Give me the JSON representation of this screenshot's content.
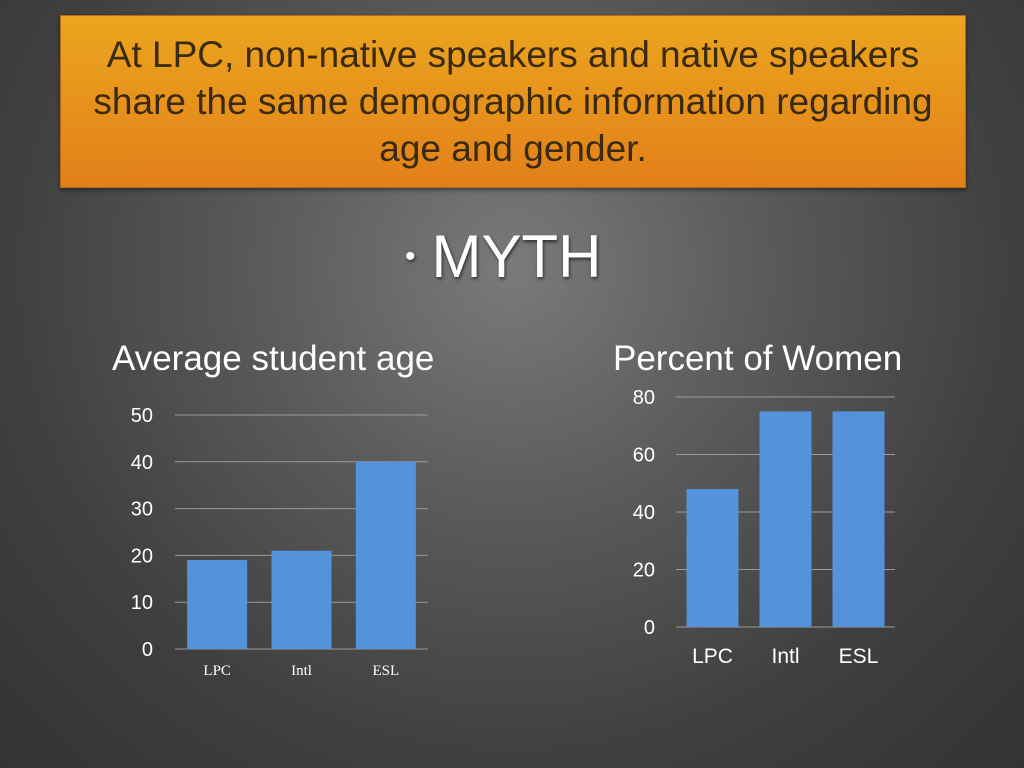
{
  "slide": {
    "headline": "At LPC, non-native speakers and native speakers share the same demographic information regarding age and gender.",
    "bullet": "•",
    "answer": "MYTH"
  },
  "colors": {
    "banner": "#e89a1c",
    "bar": "#5592dc",
    "grid": "#9a9a9a"
  },
  "chart_data": [
    {
      "type": "bar",
      "title": "Average student age",
      "categories": [
        "LPC",
        "Intl",
        "ESL"
      ],
      "values": [
        19,
        21,
        40
      ],
      "yticks": [
        "0",
        "10",
        "20",
        "30",
        "40",
        "50"
      ],
      "ylim": [
        0,
        50
      ],
      "grid": true,
      "legend": "none"
    },
    {
      "type": "bar",
      "title": "Percent of Women",
      "categories": [
        "LPC",
        "Intl",
        "ESL"
      ],
      "values": [
        48,
        75,
        75
      ],
      "yticks": [
        "0",
        "20",
        "40",
        "60",
        "80"
      ],
      "ylim": [
        0,
        80
      ],
      "grid": true,
      "legend": "none"
    }
  ]
}
